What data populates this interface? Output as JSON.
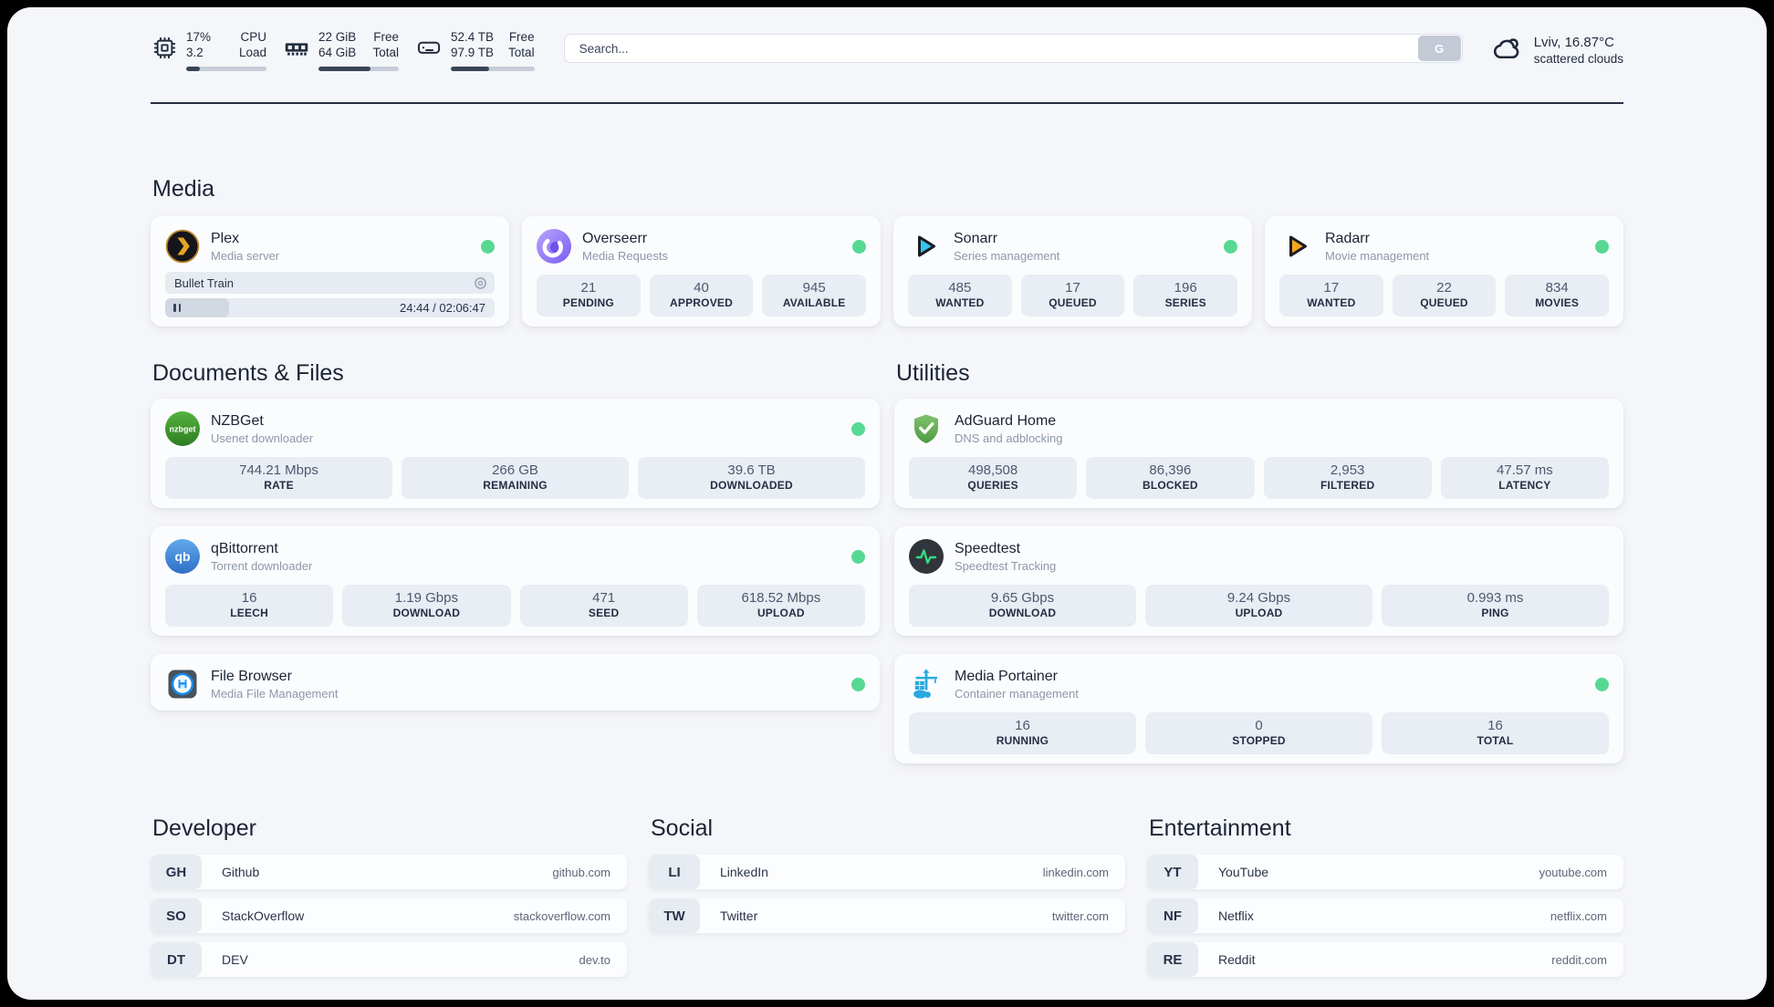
{
  "colors": {
    "status_online": "#57d993",
    "accent_dark": "#222c3e"
  },
  "topbar": {
    "cpu": {
      "icon": "cpu-chip-icon",
      "value_top": "17%",
      "value_bottom": "3.2",
      "label_top": "CPU",
      "label_bottom": "Load",
      "progress": 17
    },
    "memory": {
      "icon": "ram-icon",
      "value_top": "22 GiB",
      "value_bottom": "64 GiB",
      "label_top": "Free",
      "label_bottom": "Total",
      "progress": 65
    },
    "disk": {
      "icon": "hard-drive-icon",
      "value_top": "52.4 TB",
      "value_bottom": "97.9 TB",
      "label_top": "Free",
      "label_bottom": "Total",
      "progress": 46
    },
    "search": {
      "placeholder": "Search...",
      "button": "G"
    },
    "weather": {
      "icon": "cloud-icon",
      "summary": "Lviv, 16.87°C",
      "description": "scattered clouds"
    }
  },
  "media": {
    "title": "Media",
    "plex": {
      "icon": "plex-icon",
      "name": "Plex",
      "description": "Media server",
      "online": true,
      "now_playing": "Bullet Train",
      "time_display": "24:44 / 02:06:47",
      "progress": 19.5
    },
    "overseerr": {
      "icon": "overseerr-icon",
      "name": "Overseerr",
      "description": "Media Requests",
      "online": true,
      "stats": [
        {
          "value": "21",
          "label": "PENDING"
        },
        {
          "value": "40",
          "label": "APPROVED"
        },
        {
          "value": "945",
          "label": "AVAILABLE"
        }
      ]
    },
    "sonarr": {
      "icon": "sonarr-icon",
      "name": "Sonarr",
      "description": "Series management",
      "online": true,
      "stats": [
        {
          "value": "485",
          "label": "WANTED"
        },
        {
          "value": "17",
          "label": "QUEUED"
        },
        {
          "value": "196",
          "label": "SERIES"
        }
      ]
    },
    "radarr": {
      "icon": "radarr-icon",
      "name": "Radarr",
      "description": "Movie management",
      "online": true,
      "stats": [
        {
          "value": "17",
          "label": "WANTED"
        },
        {
          "value": "22",
          "label": "QUEUED"
        },
        {
          "value": "834",
          "label": "MOVIES"
        }
      ]
    }
  },
  "documents": {
    "title": "Documents & Files",
    "nzbget": {
      "icon": "nzbget-icon",
      "name": "NZBGet",
      "description": "Usenet downloader",
      "online": true,
      "stats": [
        {
          "value": "744.21 Mbps",
          "label": "RATE"
        },
        {
          "value": "266 GB",
          "label": "REMAINING"
        },
        {
          "value": "39.6 TB",
          "label": "DOWNLOADED"
        }
      ]
    },
    "qbittorrent": {
      "icon": "qbittorrent-icon",
      "name": "qBittorrent",
      "description": "Torrent downloader",
      "online": true,
      "stats": [
        {
          "value": "16",
          "label": "LEECH"
        },
        {
          "value": "1.19 Gbps",
          "label": "DOWNLOAD"
        },
        {
          "value": "471",
          "label": "SEED"
        },
        {
          "value": "618.52 Mbps",
          "label": "UPLOAD"
        }
      ]
    },
    "filebrowser": {
      "icon": "filebrowser-icon",
      "name": "File Browser",
      "description": "Media File Management",
      "online": true
    }
  },
  "utilities": {
    "title": "Utilities",
    "adguard": {
      "icon": "adguard-shield-icon",
      "name": "AdGuard Home",
      "description": "DNS and adblocking",
      "stats": [
        {
          "value": "498,508",
          "label": "QUERIES"
        },
        {
          "value": "86,396",
          "label": "BLOCKED"
        },
        {
          "value": "2,953",
          "label": "FILTERED"
        },
        {
          "value": "47.57 ms",
          "label": "LATENCY"
        }
      ]
    },
    "speedtest": {
      "icon": "speedtest-pulse-icon",
      "name": "Speedtest",
      "description": "Speedtest Tracking",
      "stats": [
        {
          "value": "9.65 Gbps",
          "label": "DOWNLOAD"
        },
        {
          "value": "9.24 Gbps",
          "label": "UPLOAD"
        },
        {
          "value": "0.993 ms",
          "label": "PING"
        }
      ]
    },
    "portainer": {
      "icon": "portainer-crane-icon",
      "name": "Media Portainer",
      "description": "Container management",
      "online": true,
      "stats": [
        {
          "value": "16",
          "label": "RUNNING"
        },
        {
          "value": "0",
          "label": "STOPPED"
        },
        {
          "value": "16",
          "label": "TOTAL"
        }
      ]
    }
  },
  "bookmarks": {
    "developer": {
      "title": "Developer",
      "links": [
        {
          "abbr": "GH",
          "name": "Github",
          "url": "github.com"
        },
        {
          "abbr": "SO",
          "name": "StackOverflow",
          "url": "stackoverflow.com"
        },
        {
          "abbr": "DT",
          "name": "DEV",
          "url": "dev.to"
        }
      ]
    },
    "social": {
      "title": "Social",
      "links": [
        {
          "abbr": "LI",
          "name": "LinkedIn",
          "url": "linkedin.com"
        },
        {
          "abbr": "TW",
          "name": "Twitter",
          "url": "twitter.com"
        }
      ]
    },
    "entertainment": {
      "title": "Entertainment",
      "links": [
        {
          "abbr": "YT",
          "name": "YouTube",
          "url": "youtube.com"
        },
        {
          "abbr": "NF",
          "name": "Netflix",
          "url": "netflix.com"
        },
        {
          "abbr": "RE",
          "name": "Reddit",
          "url": "reddit.com"
        }
      ]
    }
  }
}
